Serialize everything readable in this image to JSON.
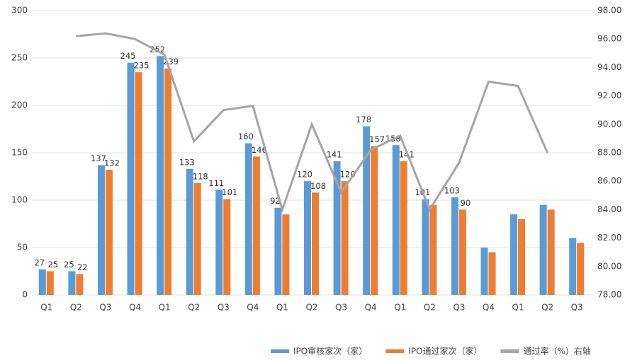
{
  "chart_data": {
    "type": "bar_line",
    "categories": [
      "Q1",
      "Q2",
      "Q3",
      "Q4",
      "Q1",
      "Q2",
      "Q3",
      "Q4",
      "Q1",
      "Q2",
      "Q3",
      "Q4",
      "Q1",
      "Q2",
      "Q3",
      "Q4",
      "Q1",
      "Q2",
      "Q3"
    ],
    "series": [
      {
        "name": "IPO审核家次（家）",
        "color": "#5b9bd5",
        "type": "bar",
        "values": [
          27,
          25,
          137,
          245,
          252,
          133,
          111,
          160,
          92,
          120,
          141,
          178,
          158,
          101,
          103,
          50,
          85,
          95,
          60
        ],
        "labeled": [
          true,
          true,
          true,
          true,
          true,
          true,
          true,
          true,
          true,
          true,
          true,
          true,
          true,
          true,
          true,
          false,
          false,
          false,
          false
        ]
      },
      {
        "name": "IPO通过家次（家）",
        "color": "#ed7d31",
        "type": "bar",
        "values": [
          25,
          22,
          132,
          235,
          239,
          118,
          101,
          146,
          85,
          108,
          120,
          157,
          141,
          95,
          90,
          45,
          80,
          90,
          55
        ],
        "labeled": [
          true,
          true,
          true,
          true,
          true,
          true,
          true,
          true,
          false,
          true,
          true,
          true,
          true,
          false,
          true,
          false,
          false,
          false,
          false
        ]
      },
      {
        "name": "通过率（%）右轴",
        "color": "#a5a5a5",
        "type": "line",
        "axis": "y2",
        "values": [
          null,
          96.2,
          96.4,
          96.0,
          94.9,
          88.8,
          91.0,
          91.3,
          84.0,
          90.0,
          85.2,
          88.2,
          89.2,
          84.0,
          87.3,
          93.0,
          92.7,
          88.0,
          null
        ]
      }
    ],
    "ylim": [
      0,
      300
    ],
    "yticks": [
      0,
      50,
      100,
      150,
      200,
      250,
      300
    ],
    "y2lim": [
      78,
      98
    ],
    "y2ticks": [
      {
        "value": 78,
        "label": "78.00"
      },
      {
        "value": 80,
        "label": "80.00"
      },
      {
        "value": 82,
        "label": "82.00"
      },
      {
        "value": 84,
        "label": "84.00"
      },
      {
        "value": 86,
        "label": "86.00"
      },
      {
        "value": 88,
        "label": "88.00"
      },
      {
        "value": 90,
        "label": "90.00"
      },
      {
        "value": 92,
        "label": "92.00"
      },
      {
        "value": 94,
        "label": "94.00"
      },
      {
        "value": 96,
        "label": "96.00"
      },
      {
        "value": 98,
        "label": "98.00"
      }
    ],
    "grid": true,
    "legend": "bottom-right"
  }
}
